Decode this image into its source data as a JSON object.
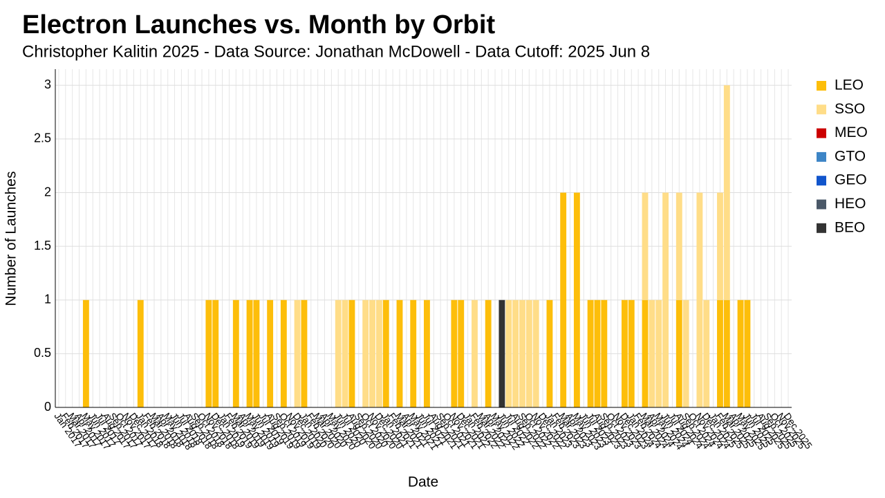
{
  "chart_data": {
    "type": "stacked_bar",
    "title": "Electron Launches vs. Month by Orbit",
    "subtitle": "Christopher Kalitin 2025 - Data Source: Jonathan McDowell - Data Cutoff: 2025 Jun 8",
    "x_label": "Date",
    "y_label": "Number of Launches",
    "categories": [
      "Jan 2017",
      "Feb 2017",
      "Mar 2017",
      "Apr 2017",
      "May 2017",
      "Jun 2017",
      "Jul 2017",
      "Aug 2017",
      "Sep 2017",
      "Oct 2017",
      "Nov 2017",
      "Dec 2017",
      "Jan 2018",
      "Feb 2018",
      "Mar 2018",
      "Apr 2018",
      "May 2018",
      "Jun 2018",
      "Jul 2018",
      "Aug 2018",
      "Sep 2018",
      "Oct 2018",
      "Nov 2018",
      "Dec 2018",
      "Jan 2019",
      "Feb 2019",
      "Mar 2019",
      "Apr 2019",
      "May 2019",
      "Jun 2019",
      "Jul 2019",
      "Aug 2019",
      "Sep 2019",
      "Oct 2019",
      "Nov 2019",
      "Dec 2019",
      "Jan 2020",
      "Feb 2020",
      "Mar 2020",
      "Apr 2020",
      "May 2020",
      "Jun 2020",
      "Jul 2020",
      "Aug 2020",
      "Sep 2020",
      "Oct 2020",
      "Nov 2020",
      "Dec 2020",
      "Jan 2021",
      "Feb 2021",
      "Mar 2021",
      "Apr 2021",
      "May 2021",
      "Jun 2021",
      "Jul 2021",
      "Aug 2021",
      "Sep 2021",
      "Oct 2021",
      "Nov 2021",
      "Dec 2021",
      "Jan 2022",
      "Feb 2022",
      "Mar 2022",
      "Apr 2022",
      "May 2022",
      "Jun 2022",
      "Jul 2022",
      "Aug 2022",
      "Sep 2022",
      "Oct 2022",
      "Nov 2022",
      "Dec 2022",
      "Jan 2023",
      "Feb 2023",
      "Mar 2023",
      "Apr 2023",
      "May 2023",
      "Jun 2023",
      "Jul 2023",
      "Aug 2023",
      "Sep 2023",
      "Oct 2023",
      "Nov 2023",
      "Dec 2023",
      "Jan 2024",
      "Feb 2024",
      "Mar 2024",
      "Apr 2024",
      "May 2024",
      "Jun 2024",
      "Jul 2024",
      "Aug 2024",
      "Sep 2024",
      "Oct 2024",
      "Nov 2024",
      "Dec 2024",
      "Jan 2025",
      "Feb 2025",
      "Mar 2025",
      "Apr 2025",
      "May 2025",
      "Jun 2025",
      "Jul 2025",
      "Aug 2025",
      "Sep 2025",
      "Oct 2025",
      "Nov 2025",
      "Dec 2025"
    ],
    "series": [
      {
        "name": "LEO",
        "color": "#fdbe0a",
        "values": [
          0,
          0,
          0,
          0,
          1,
          0,
          0,
          0,
          0,
          0,
          0,
          0,
          1,
          0,
          0,
          0,
          0,
          0,
          0,
          0,
          0,
          0,
          1,
          1,
          0,
          0,
          1,
          0,
          1,
          1,
          0,
          1,
          0,
          1,
          0,
          0,
          1,
          0,
          0,
          0,
          0,
          0,
          0,
          1,
          0,
          0,
          0,
          0,
          1,
          0,
          1,
          0,
          1,
          0,
          1,
          0,
          0,
          0,
          1,
          1,
          0,
          0,
          0,
          1,
          0,
          0,
          0,
          0,
          0,
          0,
          0,
          0,
          1,
          0,
          2,
          0,
          2,
          0,
          1,
          1,
          1,
          0,
          0,
          1,
          1,
          0,
          1,
          0,
          0,
          0,
          0,
          1,
          0,
          0,
          0,
          0,
          0,
          1,
          1,
          0,
          1,
          1,
          0,
          0,
          0,
          0,
          0,
          0
        ]
      },
      {
        "name": "SSO",
        "color": "#ffdd88",
        "values": [
          0,
          0,
          0,
          0,
          0,
          0,
          0,
          0,
          0,
          0,
          0,
          0,
          0,
          0,
          0,
          0,
          0,
          0,
          0,
          0,
          0,
          0,
          0,
          0,
          0,
          0,
          0,
          0,
          0,
          0,
          0,
          0,
          0,
          0,
          0,
          1,
          0,
          0,
          0,
          0,
          0,
          1,
          1,
          0,
          0,
          1,
          1,
          1,
          0,
          0,
          0,
          0,
          0,
          0,
          0,
          0,
          0,
          0,
          0,
          0,
          0,
          1,
          0,
          0,
          0,
          0,
          1,
          1,
          1,
          1,
          1,
          0,
          0,
          0,
          0,
          0,
          0,
          0,
          0,
          0,
          0,
          0,
          0,
          0,
          0,
          0,
          1,
          1,
          1,
          2,
          0,
          1,
          1,
          0,
          2,
          1,
          0,
          1,
          2,
          0,
          0,
          0,
          0,
          0,
          0,
          0,
          0,
          0
        ]
      },
      {
        "name": "MEO",
        "color": "#cc0000",
        "values": [
          0,
          0,
          0,
          0,
          0,
          0,
          0,
          0,
          0,
          0,
          0,
          0,
          0,
          0,
          0,
          0,
          0,
          0,
          0,
          0,
          0,
          0,
          0,
          0,
          0,
          0,
          0,
          0,
          0,
          0,
          0,
          0,
          0,
          0,
          0,
          0,
          0,
          0,
          0,
          0,
          0,
          0,
          0,
          0,
          0,
          0,
          0,
          0,
          0,
          0,
          0,
          0,
          0,
          0,
          0,
          0,
          0,
          0,
          0,
          0,
          0,
          0,
          0,
          0,
          0,
          0,
          0,
          0,
          0,
          0,
          0,
          0,
          0,
          0,
          0,
          0,
          0,
          0,
          0,
          0,
          0,
          0,
          0,
          0,
          0,
          0,
          0,
          0,
          0,
          0,
          0,
          0,
          0,
          0,
          0,
          0,
          0,
          0,
          0,
          0,
          0,
          0,
          0,
          0,
          0,
          0,
          0,
          0
        ]
      },
      {
        "name": "GTO",
        "color": "#3d85c6",
        "values": [
          0,
          0,
          0,
          0,
          0,
          0,
          0,
          0,
          0,
          0,
          0,
          0,
          0,
          0,
          0,
          0,
          0,
          0,
          0,
          0,
          0,
          0,
          0,
          0,
          0,
          0,
          0,
          0,
          0,
          0,
          0,
          0,
          0,
          0,
          0,
          0,
          0,
          0,
          0,
          0,
          0,
          0,
          0,
          0,
          0,
          0,
          0,
          0,
          0,
          0,
          0,
          0,
          0,
          0,
          0,
          0,
          0,
          0,
          0,
          0,
          0,
          0,
          0,
          0,
          0,
          0,
          0,
          0,
          0,
          0,
          0,
          0,
          0,
          0,
          0,
          0,
          0,
          0,
          0,
          0,
          0,
          0,
          0,
          0,
          0,
          0,
          0,
          0,
          0,
          0,
          0,
          0,
          0,
          0,
          0,
          0,
          0,
          0,
          0,
          0,
          0,
          0,
          0,
          0,
          0,
          0,
          0,
          0
        ]
      },
      {
        "name": "GEO",
        "color": "#1155cc",
        "values": [
          0,
          0,
          0,
          0,
          0,
          0,
          0,
          0,
          0,
          0,
          0,
          0,
          0,
          0,
          0,
          0,
          0,
          0,
          0,
          0,
          0,
          0,
          0,
          0,
          0,
          0,
          0,
          0,
          0,
          0,
          0,
          0,
          0,
          0,
          0,
          0,
          0,
          0,
          0,
          0,
          0,
          0,
          0,
          0,
          0,
          0,
          0,
          0,
          0,
          0,
          0,
          0,
          0,
          0,
          0,
          0,
          0,
          0,
          0,
          0,
          0,
          0,
          0,
          0,
          0,
          0,
          0,
          0,
          0,
          0,
          0,
          0,
          0,
          0,
          0,
          0,
          0,
          0,
          0,
          0,
          0,
          0,
          0,
          0,
          0,
          0,
          0,
          0,
          0,
          0,
          0,
          0,
          0,
          0,
          0,
          0,
          0,
          0,
          0,
          0,
          0,
          0,
          0,
          0,
          0,
          0,
          0,
          0
        ]
      },
      {
        "name": "HEO",
        "color": "#4a5868",
        "values": [
          0,
          0,
          0,
          0,
          0,
          0,
          0,
          0,
          0,
          0,
          0,
          0,
          0,
          0,
          0,
          0,
          0,
          0,
          0,
          0,
          0,
          0,
          0,
          0,
          0,
          0,
          0,
          0,
          0,
          0,
          0,
          0,
          0,
          0,
          0,
          0,
          0,
          0,
          0,
          0,
          0,
          0,
          0,
          0,
          0,
          0,
          0,
          0,
          0,
          0,
          0,
          0,
          0,
          0,
          0,
          0,
          0,
          0,
          0,
          0,
          0,
          0,
          0,
          0,
          0,
          0,
          0,
          0,
          0,
          0,
          0,
          0,
          0,
          0,
          0,
          0,
          0,
          0,
          0,
          0,
          0,
          0,
          0,
          0,
          0,
          0,
          0,
          0,
          0,
          0,
          0,
          0,
          0,
          0,
          0,
          0,
          0,
          0,
          0,
          0,
          0,
          0,
          0,
          0,
          0,
          0,
          0,
          0
        ]
      },
      {
        "name": "BEO",
        "color": "#333333",
        "values": [
          0,
          0,
          0,
          0,
          0,
          0,
          0,
          0,
          0,
          0,
          0,
          0,
          0,
          0,
          0,
          0,
          0,
          0,
          0,
          0,
          0,
          0,
          0,
          0,
          0,
          0,
          0,
          0,
          0,
          0,
          0,
          0,
          0,
          0,
          0,
          0,
          0,
          0,
          0,
          0,
          0,
          0,
          0,
          0,
          0,
          0,
          0,
          0,
          0,
          0,
          0,
          0,
          0,
          0,
          0,
          0,
          0,
          0,
          0,
          0,
          0,
          0,
          0,
          0,
          0,
          1,
          0,
          0,
          0,
          0,
          0,
          0,
          0,
          0,
          0,
          0,
          0,
          0,
          0,
          0,
          0,
          0,
          0,
          0,
          0,
          0,
          0,
          0,
          0,
          0,
          0,
          0,
          0,
          0,
          0,
          0,
          0,
          0,
          0,
          0,
          0,
          0,
          0,
          0,
          0,
          0,
          0,
          0
        ]
      }
    ],
    "ylim": [
      0,
      3.15
    ],
    "yticks": [
      0,
      0.5,
      1,
      1.5,
      2,
      2.5,
      3
    ],
    "grid": true,
    "legend": "right"
  }
}
